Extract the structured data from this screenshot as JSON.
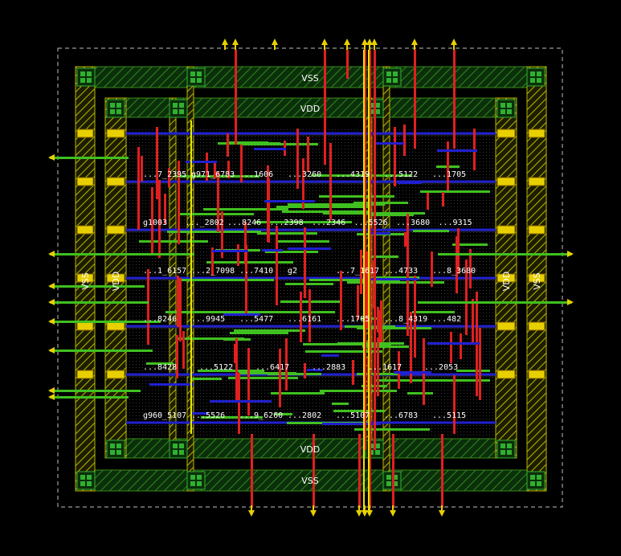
{
  "rails": {
    "vss_top": "VSS",
    "vdd_top": "VDD",
    "vdd_bottom": "VDD",
    "vss_bottom": "VSS",
    "vdd_left": "VDD",
    "vss_left": "VSS",
    "vdd_right": "VDD",
    "vss_right": "VSS"
  },
  "row_labels": [
    [
      "...7_2395",
      "g971_6783",
      "...1606",
      "...3260",
      "...4319",
      "...5122",
      "...1705"
    ],
    [
      "g1003",
      "..._2802",
      "...8246",
      "...2398",
      "...2346",
      "...5526",
      "...3680",
      "...9315"
    ],
    [
      "...1_6157",
      "...2_7098",
      "...7410",
      "g2",
      "...7_1617",
      "...4733",
      "...8_3680"
    ],
    [
      "...8246",
      "...9945",
      "...5477",
      "...6161",
      "...1705",
      "...8_4319",
      "...482"
    ],
    [
      "...8428",
      "...5122",
      "...6417",
      "...2883",
      "...1617",
      "...2053"
    ],
    [
      "g960_5107",
      "...5526",
      "...9_6260",
      "...2802",
      "...5107",
      "...6783",
      "...5115"
    ]
  ],
  "colors": {
    "background": "#000000",
    "rail_fill": "#0a3a0a",
    "rail_hatch": "#3a8a1a",
    "vertical_strap": "#d8d800",
    "metal_red": "#e02020",
    "metal_green": "#40c020",
    "metal_blue": "#2020d0",
    "pin": "#e8d000",
    "via_green": "#30b030"
  }
}
